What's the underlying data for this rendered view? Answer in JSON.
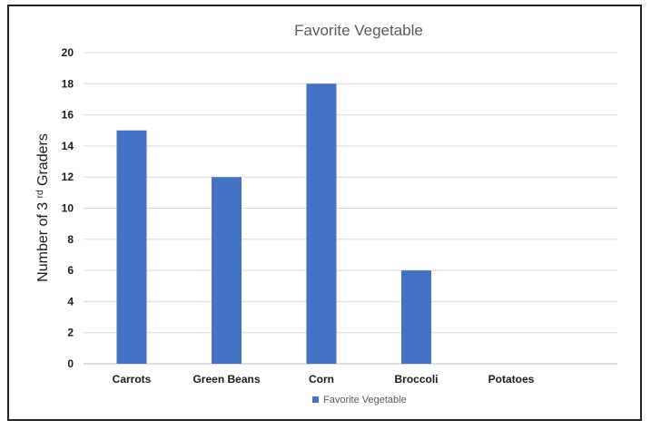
{
  "chart_data": {
    "type": "bar",
    "title": "Favorite Vegetable",
    "ylabel": "Number of 3rd Graders",
    "categories": [
      "Carrots",
      "Green Beans",
      "Corn",
      "Broccoli",
      "Potatoes"
    ],
    "series": [
      {
        "name": "Favorite Vegetable",
        "values": [
          15,
          12,
          18,
          6,
          0
        ]
      }
    ],
    "ylim": [
      0,
      20
    ],
    "yticks": [
      "0",
      "2",
      "4",
      "6",
      "8",
      "10",
      "12",
      "14",
      "16",
      "18",
      "20"
    ],
    "grid": true,
    "legend": "bottom",
    "colors": {
      "bar": "#4472C4"
    }
  }
}
